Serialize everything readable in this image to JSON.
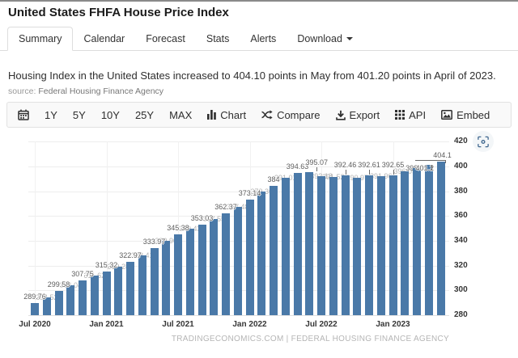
{
  "page": {
    "title": "United States FHFA House Price Index",
    "summary_text": "Housing Index in the United States increased to 404.10 points in May from 401.20 points in April of 2023.",
    "source_prefix": "source:",
    "source_name": "Federal Housing Finance Agency"
  },
  "tabs": [
    {
      "label": "Summary",
      "active": true
    },
    {
      "label": "Calendar",
      "active": false
    },
    {
      "label": "Forecast",
      "active": false
    },
    {
      "label": "Stats",
      "active": false
    },
    {
      "label": "Alerts",
      "active": false
    },
    {
      "label": "Download",
      "active": false,
      "has_caret": true
    }
  ],
  "toolbar": {
    "calendar_icon": "calendar-icon",
    "ranges": [
      "1Y",
      "5Y",
      "10Y",
      "25Y",
      "MAX"
    ],
    "actions": [
      {
        "icon": "bar-chart-icon",
        "label": "Chart"
      },
      {
        "icon": "compare-icon",
        "label": "Compare"
      },
      {
        "icon": "export-icon",
        "label": "Export"
      },
      {
        "icon": "api-icon",
        "label": "API"
      },
      {
        "icon": "embed-icon",
        "label": "Embed"
      }
    ]
  },
  "colors": {
    "bar": "#4a79a8",
    "dark_label": "#5d5d5d",
    "gray_label": "#b3b3b3",
    "expand_icon_blue": "#41688f"
  },
  "chart_data": {
    "type": "bar",
    "title": "",
    "xlabel": "",
    "ylabel": "",
    "ylim": [
      280,
      420
    ],
    "yticks": [
      280,
      300,
      320,
      340,
      360,
      380,
      400,
      420
    ],
    "grid": true,
    "legend": "none",
    "bar_color": "#4a79a8",
    "watermark": "TRADINGECONOMICS.COM | FEDERAL HOUSING FINANCE AGENCY",
    "xtick_indices": [
      0,
      6,
      12,
      18,
      24,
      30
    ],
    "xtick_labels": [
      "Jul 2020",
      "Jan 2021",
      "Jul 2021",
      "Jan 2022",
      "Jul 2022",
      "Jan 2023"
    ],
    "bars": [
      {
        "month": "Jul 2020",
        "value": 289.76,
        "label": "289.76",
        "style": "dark"
      },
      {
        "month": "Aug 2020",
        "value": 294.52,
        "label": "294.52",
        "style": "gray"
      },
      {
        "month": "Sep 2020",
        "value": 299.58,
        "label": "299.58",
        "style": "dark"
      },
      {
        "month": "Oct 2020",
        "value": 304.04,
        "label": "304.04",
        "style": "gray"
      },
      {
        "month": "Nov 2020",
        "value": 307.75,
        "label": "307.75",
        "style": "dark"
      },
      {
        "month": "Dec 2020",
        "value": 311.62,
        "label": "311.62",
        "style": "gray"
      },
      {
        "month": "Jan 2021",
        "value": 315.32,
        "label": "315.32",
        "style": "dark"
      },
      {
        "month": "Feb 2021",
        "value": 319.28,
        "label": "319.28",
        "style": "gray"
      },
      {
        "month": "Mar 2021",
        "value": 322.97,
        "label": "322.97",
        "style": "dark"
      },
      {
        "month": "Apr 2021",
        "value": 328.41,
        "label": "328.41",
        "style": "gray"
      },
      {
        "month": "May 2021",
        "value": 333.97,
        "label": "333.97",
        "style": "dark"
      },
      {
        "month": "Jun 2021",
        "value": 339.9,
        "label": "339.90",
        "style": "gray"
      },
      {
        "month": "Jul 2021",
        "value": 345.38,
        "label": "345.38",
        "style": "dark"
      },
      {
        "month": "Aug 2021",
        "value": 349.43,
        "label": "349.43",
        "style": "gray"
      },
      {
        "month": "Sep 2021",
        "value": 353.03,
        "label": "353.03",
        "style": "dark"
      },
      {
        "month": "Oct 2021",
        "value": 357.55,
        "label": "357.55",
        "style": "gray"
      },
      {
        "month": "Nov 2021",
        "value": 362.37,
        "label": "362.37",
        "style": "dark"
      },
      {
        "month": "Dec 2021",
        "value": 367.48,
        "label": "367.48",
        "style": "gray"
      },
      {
        "month": "Jan 2022",
        "value": 373.14,
        "label": "373.14",
        "style": "dark"
      },
      {
        "month": "Feb 2022",
        "value": 379.36,
        "label": "379.36",
        "style": "gray"
      },
      {
        "month": "Mar 2022",
        "value": 384,
        "label": "384",
        "style": "dark"
      },
      {
        "month": "Apr 2022",
        "value": 391.01,
        "label": "391.01",
        "style": "gray"
      },
      {
        "month": "May 2022",
        "value": 394.63,
        "label": "394.63",
        "style": "dark"
      },
      {
        "month": "Jun 2022",
        "value": 395.07,
        "label": "395.07",
        "style": "dark",
        "dx": 9,
        "dy": -4,
        "connector": "down"
      },
      {
        "month": "Jul 2022",
        "value": 392.18,
        "label": "392.18",
        "style": "gray"
      },
      {
        "month": "Aug 2022",
        "value": 391.52,
        "label": "391.52",
        "style": "gray"
      },
      {
        "month": "Sep 2022",
        "value": 392.46,
        "label": "392.46",
        "style": "dark",
        "dy": -5,
        "connector": "down"
      },
      {
        "month": "Oct 2022",
        "value": 390.97,
        "label": "390.97",
        "style": "gray"
      },
      {
        "month": "Nov 2022",
        "value": 392.61,
        "label": "392.61",
        "style": "dark",
        "dy": -5,
        "connector": "down"
      },
      {
        "month": "Dec 2022",
        "value": 391.96,
        "label": "391.96",
        "style": "gray"
      },
      {
        "month": "Jan 2023",
        "value": 392.65,
        "label": "392.65",
        "style": "dark",
        "dy": -5,
        "connector": "down"
      },
      {
        "month": "Feb 2023",
        "value": 396.09,
        "label": "396.09",
        "style": "gray"
      },
      {
        "month": "Mar 2023",
        "value": 398.45,
        "label": "398.45",
        "style": "darkBehind"
      },
      {
        "month": "Apr 2023",
        "value": 401.2,
        "label": "401.2",
        "style": "dark",
        "dx": -5,
        "dy": 12,
        "connector": "tick"
      },
      {
        "month": "May 2023",
        "value": 404.1,
        "label": "404.1",
        "style": "dark",
        "dx": 2,
        "connector": "bracket"
      }
    ]
  }
}
